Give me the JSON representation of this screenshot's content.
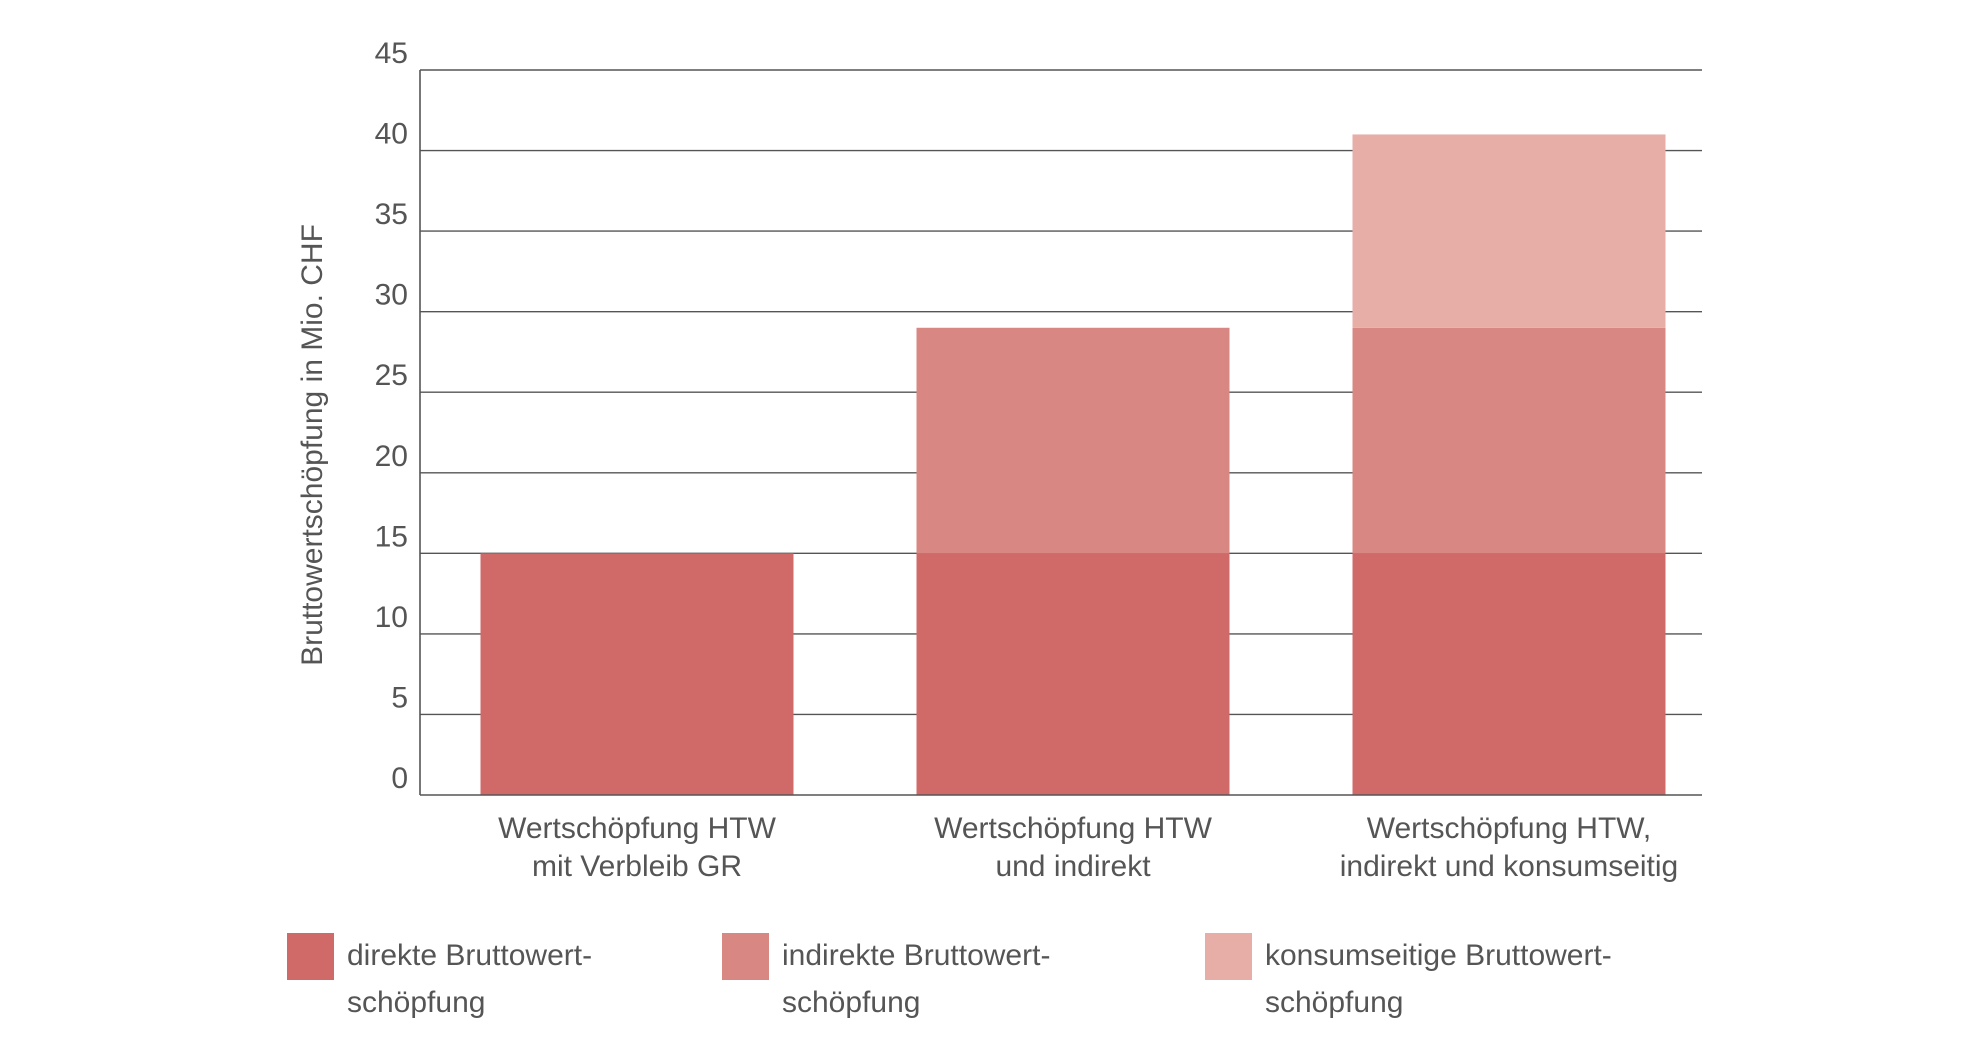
{
  "chart_data": {
    "type": "bar",
    "stacked": true,
    "title": "",
    "ylabel": "Bruttowertschöpfung in Mio. CHF",
    "xlabel": "",
    "ylim": [
      0,
      45
    ],
    "y_ticks": [
      0,
      5,
      10,
      15,
      20,
      25,
      30,
      35,
      40,
      45
    ],
    "grid": true,
    "legend_position": "bottom",
    "categories": [
      [
        "Wertschöpfung HTW",
        "mit Verbleib GR"
      ],
      [
        "Wertschöpfung HTW",
        "und indirekt"
      ],
      [
        "Wertschöpfung HTW,",
        "indirekt und konsumseitig"
      ]
    ],
    "series": [
      {
        "name": [
          "direkte Bruttowert-",
          "schöpfung"
        ],
        "color": "#D06A69",
        "values": [
          15,
          15,
          15
        ]
      },
      {
        "name": [
          "indirekte Bruttowert-",
          "schöpfung"
        ],
        "color": "#D98782",
        "values": [
          0,
          14,
          14
        ]
      },
      {
        "name": [
          "konsumseitige Bruttowert-",
          "schöpfung"
        ],
        "color": "#E7AEA8",
        "values": [
          0,
          0,
          12
        ]
      }
    ]
  }
}
